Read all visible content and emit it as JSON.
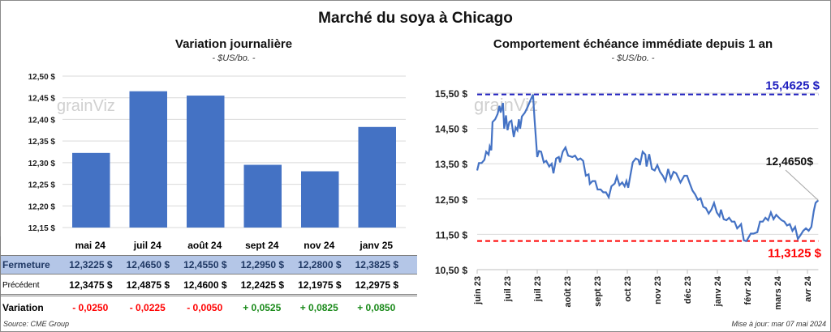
{
  "title": "Marché du soya à Chicago",
  "watermark": "grainViz",
  "left": {
    "title": "Variation journalière",
    "unit": "- $US/bo. -"
  },
  "right": {
    "title": "Comportement  échéance immédiate depuis 1 an",
    "unit": "- $US/bo. -"
  },
  "table": {
    "headers": [
      "mai 24",
      "juil 24",
      "août 24",
      "sept 24",
      "nov 24",
      "janv 25"
    ],
    "rows": [
      {
        "label": "Fermeture",
        "cells": [
          "12,3225  $",
          "12,4650  $",
          "12,4550  $",
          "12,2950  $",
          "12,2800  $",
          "12,3825  $"
        ]
      },
      {
        "label": "Précédent",
        "cells": [
          "12,3475  $",
          "12,4875  $",
          "12,4600  $",
          "12,2425  $",
          "12,1975  $",
          "12,2975  $"
        ]
      },
      {
        "label": "Variation",
        "cells": [
          "- 0,0250",
          "- 0,0225",
          "- 0,0050",
          "+ 0,0525",
          "+ 0,0825",
          "+ 0,0850"
        ]
      }
    ]
  },
  "colors": {
    "bar": "#4472c4",
    "line": "#4472c4",
    "max": "#1f1fbf",
    "min": "#ff0000",
    "neg": "#ff0000",
    "pos": "#1a8a1a",
    "fermeture_bg": "#b4c6e7",
    "fermeture_text": "#1f3864"
  },
  "source": "Source: CME Group",
  "updated": "Mise à jour: mar 07 mai 2024",
  "chart_data": [
    {
      "type": "bar",
      "title": "Variation journalière",
      "ylabel": "$US/bo.",
      "categories": [
        "mai 24",
        "juil 24",
        "août 24",
        "sept 24",
        "nov 24",
        "janv 25"
      ],
      "values": [
        12.3225,
        12.465,
        12.455,
        12.295,
        12.28,
        12.3825
      ],
      "ylim": [
        12.15,
        12.5
      ],
      "yticks": [
        "12,15 $",
        "12,20 $",
        "12,25 $",
        "12,30 $",
        "12,35 $",
        "12,40 $",
        "12,45 $",
        "12,50 $"
      ],
      "grid": true
    },
    {
      "type": "line",
      "title": "Comportement  échéance immédiate depuis 1 an",
      "ylabel": "$US/bo.",
      "xticks": [
        "juin 23",
        "juil 23",
        "juil 23",
        "août 23",
        "sept 23",
        "oct 23",
        "nov 23",
        "déc 23",
        "janv 24",
        "févr 24",
        "mars 24",
        "avr 24"
      ],
      "yticks": [
        "10,50 $",
        "11,50 $",
        "12,50 $",
        "13,50 $",
        "14,50 $",
        "15,50 $"
      ],
      "ylim": [
        10.5,
        15.5
      ],
      "grid": true,
      "max": {
        "value": 15.4625,
        "label": "15,4625 $"
      },
      "min": {
        "value": 11.3125,
        "label": "11,3125 $"
      },
      "last": {
        "value": 12.465,
        "label": "12,4650$"
      },
      "points": [
        [
          0,
          13.31
        ],
        [
          0.06,
          13.52
        ],
        [
          0.15,
          13.52
        ],
        [
          0.24,
          13.61
        ],
        [
          0.3,
          13.84
        ],
        [
          0.38,
          13.76
        ],
        [
          0.42,
          13.99
        ],
        [
          0.47,
          13.88
        ],
        [
          0.51,
          14.68
        ],
        [
          0.6,
          14.76
        ],
        [
          0.68,
          14.91
        ],
        [
          0.74,
          15.14
        ],
        [
          0.78,
          14.95
        ],
        [
          0.86,
          15.22
        ],
        [
          0.9,
          14.49
        ],
        [
          0.96,
          14.87
        ],
        [
          1.01,
          14.45
        ],
        [
          1.07,
          14.68
        ],
        [
          1.14,
          14.72
        ],
        [
          1.22,
          14.26
        ],
        [
          1.28,
          14.53
        ],
        [
          1.34,
          14.45
        ],
        [
          1.39,
          14.76
        ],
        [
          1.43,
          14.49
        ],
        [
          1.49,
          14.84
        ],
        [
          1.59,
          14.95
        ],
        [
          1.68,
          15.11
        ],
        [
          1.77,
          15.29
        ],
        [
          1.86,
          15.46
        ],
        [
          1.91,
          14.76
        ],
        [
          2.0,
          13.69
        ],
        [
          2.06,
          13.86
        ],
        [
          2.13,
          13.84
        ],
        [
          2.22,
          13.54
        ],
        [
          2.3,
          13.58
        ],
        [
          2.4,
          13.42
        ],
        [
          2.48,
          13.5
        ],
        [
          2.54,
          13.23
        ],
        [
          2.63,
          13.65
        ],
        [
          2.72,
          13.69
        ],
        [
          2.76,
          13.54
        ],
        [
          2.85,
          13.84
        ],
        [
          2.94,
          13.96
        ],
        [
          3.03,
          13.73
        ],
        [
          3.17,
          13.69
        ],
        [
          3.26,
          13.73
        ],
        [
          3.35,
          13.61
        ],
        [
          3.44,
          13.65
        ],
        [
          3.53,
          13.58
        ],
        [
          3.62,
          13.16
        ],
        [
          3.71,
          13.2
        ],
        [
          3.75,
          12.93
        ],
        [
          3.84,
          13.01
        ],
        [
          3.93,
          13.01
        ],
        [
          4.01,
          12.77
        ],
        [
          4.11,
          12.77
        ],
        [
          4.2,
          12.69
        ],
        [
          4.29,
          12.69
        ],
        [
          4.38,
          12.55
        ],
        [
          4.47,
          12.86
        ],
        [
          4.58,
          12.94
        ],
        [
          4.65,
          13.14
        ],
        [
          4.74,
          12.89
        ],
        [
          4.83,
          12.97
        ],
        [
          4.91,
          12.86
        ],
        [
          4.97,
          13.01
        ],
        [
          5.03,
          12.82
        ],
        [
          5.1,
          13.16
        ],
        [
          5.18,
          13.54
        ],
        [
          5.28,
          13.65
        ],
        [
          5.37,
          13.61
        ],
        [
          5.42,
          13.46
        ],
        [
          5.51,
          13.84
        ],
        [
          5.6,
          13.76
        ],
        [
          5.64,
          13.42
        ],
        [
          5.73,
          13.77
        ],
        [
          5.82,
          13.35
        ],
        [
          5.91,
          13.31
        ],
        [
          6.0,
          13.46
        ],
        [
          6.09,
          13.27
        ],
        [
          6.18,
          13.16
        ],
        [
          6.27,
          13.01
        ],
        [
          6.36,
          13.35
        ],
        [
          6.45,
          13.08
        ],
        [
          6.54,
          13.27
        ],
        [
          6.63,
          13.23
        ],
        [
          6.77,
          12.97
        ],
        [
          6.9,
          13.16
        ],
        [
          6.99,
          13.16
        ],
        [
          7.08,
          12.94
        ],
        [
          7.17,
          12.74
        ],
        [
          7.26,
          12.63
        ],
        [
          7.35,
          12.48
        ],
        [
          7.44,
          12.52
        ],
        [
          7.53,
          12.28
        ],
        [
          7.62,
          12.24
        ],
        [
          7.71,
          12.09
        ],
        [
          7.8,
          12.2
        ],
        [
          7.89,
          12.39
        ],
        [
          7.98,
          12.12
        ],
        [
          8.07,
          12.01
        ],
        [
          8.12,
          12.2
        ],
        [
          8.21,
          11.93
        ],
        [
          8.3,
          11.9
        ],
        [
          8.39,
          11.97
        ],
        [
          8.48,
          11.86
        ],
        [
          8.57,
          11.86
        ],
        [
          8.66,
          11.67
        ],
        [
          8.75,
          11.75
        ],
        [
          8.79,
          11.79
        ],
        [
          8.88,
          11.33
        ],
        [
          8.97,
          11.31
        ],
        [
          9.11,
          11.52
        ],
        [
          9.2,
          11.52
        ],
        [
          9.33,
          11.56
        ],
        [
          9.42,
          11.86
        ],
        [
          9.51,
          11.86
        ],
        [
          9.6,
          11.97
        ],
        [
          9.69,
          11.9
        ],
        [
          9.78,
          12.12
        ],
        [
          9.87,
          11.93
        ],
        [
          9.96,
          12.05
        ],
        [
          10.05,
          11.97
        ],
        [
          10.14,
          11.9
        ],
        [
          10.23,
          11.86
        ],
        [
          10.32,
          11.75
        ],
        [
          10.41,
          11.79
        ],
        [
          10.5,
          11.6
        ],
        [
          10.59,
          11.71
        ],
        [
          10.68,
          11.37
        ],
        [
          10.77,
          11.48
        ],
        [
          10.86,
          11.6
        ],
        [
          10.95,
          11.67
        ],
        [
          11.04,
          11.6
        ],
        [
          11.13,
          11.71
        ],
        [
          11.21,
          12.16
        ],
        [
          11.27,
          12.39
        ],
        [
          11.36,
          12.465
        ]
      ]
    }
  ]
}
